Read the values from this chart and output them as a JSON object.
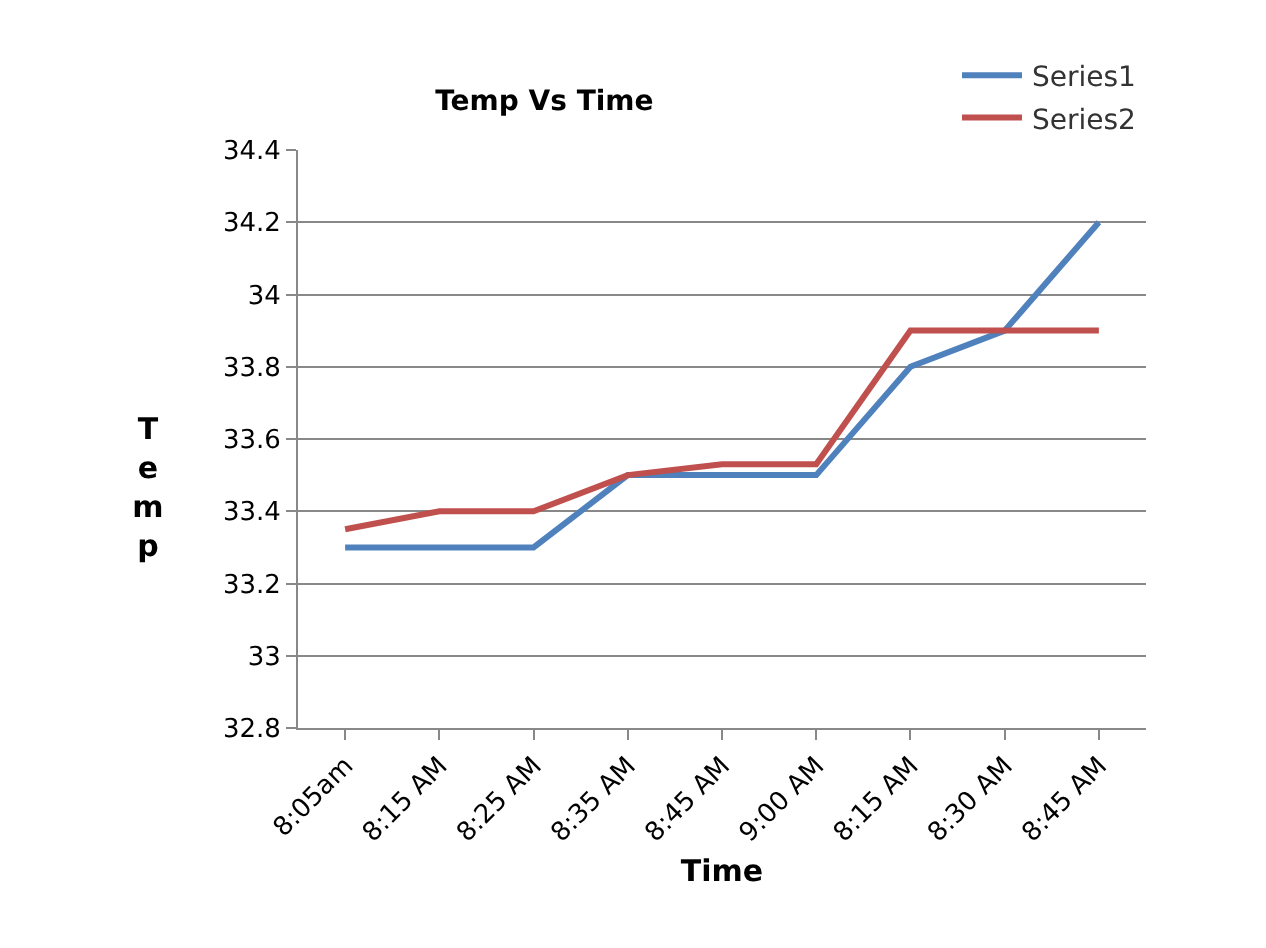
{
  "chart_data": {
    "type": "line",
    "title": "Temp Vs Time",
    "xlabel": "Time",
    "ylabel": "Temp",
    "categories": [
      "8:05am",
      "8:15 AM",
      "8:25 AM",
      "8:35 AM",
      "8:45 AM",
      "9:00 AM",
      "8:15 AM",
      "8:30 AM",
      "8:45 AM"
    ],
    "series": [
      {
        "name": "Series1",
        "color": "#4f81bd",
        "values": [
          33.3,
          33.3,
          33.3,
          33.5,
          33.5,
          33.5,
          33.8,
          33.9,
          34.2
        ]
      },
      {
        "name": "Series2",
        "color": "#c0504d",
        "values": [
          33.35,
          33.4,
          33.4,
          33.5,
          33.53,
          33.53,
          33.9,
          33.9,
          33.9
        ]
      }
    ],
    "ylim": [
      32.8,
      34.4
    ],
    "yticks": [
      32.8,
      33,
      33.2,
      33.4,
      33.6,
      33.8,
      34,
      34.2,
      34.4
    ],
    "grid": "y",
    "legend": "top right",
    "marker": "none",
    "line_style": "solid"
  }
}
